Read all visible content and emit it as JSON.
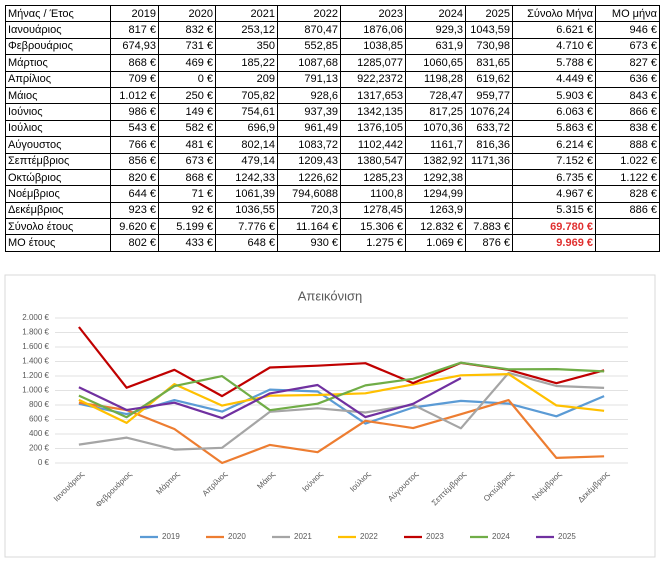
{
  "table": {
    "header": [
      "Μήνας / Έτος",
      "2019",
      "2020",
      "2021",
      "2022",
      "2023",
      "2024",
      "2025",
      "Σύνολο Μήνα",
      "ΜΟ μήνα"
    ],
    "rows": [
      [
        "Ιανουάριος",
        "817 €",
        "832 €",
        "253,12",
        "870,47",
        "1876,06",
        "929,3",
        "1043,59",
        "6.621 €",
        "946 €"
      ],
      [
        "Φεβρουάριος",
        "674,93",
        "731 €",
        "350",
        "552,85",
        "1038,85",
        "631,9",
        "730,98",
        "4.710 €",
        "673 €"
      ],
      [
        "Μάρτιος",
        "868 €",
        "469 €",
        "185,22",
        "1087,68",
        "1285,077",
        "1060,65",
        "831,65",
        "5.788 €",
        "827 €"
      ],
      [
        "Απρίλιος",
        "709 €",
        "0 €",
        "209",
        "791,13",
        "922,2372",
        "1198,28",
        "619,62",
        "4.449 €",
        "636 €"
      ],
      [
        "Μάιος",
        "1.012 €",
        "250 €",
        "705,82",
        "928,6",
        "1317,653",
        "728,47",
        "959,77",
        "5.903 €",
        "843 €"
      ],
      [
        "Ιούνιος",
        "986 €",
        "149 €",
        "754,61",
        "937,39",
        "1342,135",
        "817,25",
        "1076,24",
        "6.063 €",
        "866 €"
      ],
      [
        "Ιούλιος",
        "543 €",
        "582 €",
        "696,9",
        "961,49",
        "1376,105",
        "1070,36",
        "633,72",
        "5.863 €",
        "838 €"
      ],
      [
        "Αύγουστος",
        "766 €",
        "481 €",
        "802,14",
        "1083,72",
        "1102,442",
        "1161,7",
        "816,36",
        "6.214 €",
        "888 €"
      ],
      [
        "Σεπτέμβριος",
        "856 €",
        "673 €",
        "479,14",
        "1209,43",
        "1380,547",
        "1382,92",
        "1171,36",
        "7.152 €",
        "1.022 €"
      ],
      [
        "Οκτώβριος",
        "820 €",
        "868 €",
        "1242,33",
        "1226,62",
        "1285,23",
        "1292,38",
        null,
        "6.735 €",
        "1.122 €"
      ],
      [
        "Νοέμβριος",
        "644 €",
        "71 €",
        "1061,39",
        "794,6088",
        "1100,8",
        "1294,99",
        null,
        "4.967 €",
        "828 €"
      ],
      [
        "Δεκέμβριος",
        "923 €",
        "92 €",
        "1036,55",
        "720,3",
        "1278,45",
        "1263,9",
        null,
        "5.315 €",
        "886 €"
      ],
      [
        "Σύνολο έτους",
        "9.620 €",
        "5.199 €",
        "7.776 €",
        "11.164 €",
        "15.306 €",
        "12.832 €",
        "7.883 €",
        "69.780 €",
        null
      ],
      [
        "ΜΟ έτους",
        "802 €",
        "433 €",
        "648 €",
        "930 €",
        "1.275 €",
        "1.069 €",
        "876 €",
        "9.969 €",
        null
      ]
    ]
  },
  "chart_data": {
    "type": "line",
    "title": "Απεικόνιση",
    "categories": [
      "Ιανουάριος",
      "Φεβρουάριος",
      "Μάρτιος",
      "Απρίλιος",
      "Μάιος",
      "Ιούνιος",
      "Ιούλιος",
      "Αύγουστος",
      "Σεπτέμβριος",
      "Οκτώβριος",
      "Νοέμβριος",
      "Δεκέμβριος"
    ],
    "series": [
      {
        "name": "2019",
        "color": "#5b9bd5",
        "values": [
          817,
          674.93,
          868,
          709,
          1012,
          986,
          543,
          766,
          856,
          820,
          644,
          923
        ]
      },
      {
        "name": "2020",
        "color": "#ed7d31",
        "values": [
          832,
          731,
          469,
          0,
          250,
          149,
          582,
          481,
          673,
          868,
          71,
          92
        ]
      },
      {
        "name": "2021",
        "color": "#a5a5a5",
        "values": [
          253.12,
          350,
          185.22,
          209,
          705.82,
          754.61,
          696.9,
          802.14,
          479.14,
          1242.33,
          1061.39,
          1036.55
        ]
      },
      {
        "name": "2022",
        "color": "#ffc000",
        "values": [
          870.47,
          552.85,
          1087.68,
          791.13,
          928.6,
          937.39,
          961.49,
          1083.72,
          1209.43,
          1226.62,
          794.6088,
          720.3
        ]
      },
      {
        "name": "2023",
        "color": "#c00000",
        "values": [
          1876.06,
          1038.85,
          1285.077,
          922.2372,
          1317.653,
          1342.135,
          1376.105,
          1102.442,
          1380.547,
          1285.23,
          1100.8,
          1278.45
        ]
      },
      {
        "name": "2024",
        "color": "#70ad47",
        "values": [
          929.3,
          631.9,
          1060.65,
          1198.28,
          728.47,
          817.25,
          1070.36,
          1161.7,
          1382.92,
          1292.38,
          1294.99,
          1263.9
        ]
      },
      {
        "name": "2025",
        "color": "#7030a0",
        "values": [
          1043.59,
          730.98,
          831.65,
          619.62,
          959.77,
          1076.24,
          633.72,
          816.36,
          1171.36,
          null,
          null,
          null
        ]
      }
    ],
    "ylim": [
      0,
      2000
    ],
    "yticks": [
      {
        "value": 0,
        "label": "0 €"
      },
      {
        "value": 200,
        "label": "200 €"
      },
      {
        "value": 400,
        "label": "400 €"
      },
      {
        "value": 600,
        "label": "600 €"
      },
      {
        "value": 800,
        "label": "800 €"
      },
      {
        "value": 1000,
        "label": "1.000 €"
      },
      {
        "value": 1200,
        "label": "1.200 €"
      },
      {
        "value": 1400,
        "label": "1.400 €"
      },
      {
        "value": 1600,
        "label": "1.600 €"
      },
      {
        "value": 1800,
        "label": "1.800 €"
      },
      {
        "value": 2000,
        "label": "2.000 €"
      }
    ],
    "grid": true,
    "legend": "bottom"
  }
}
